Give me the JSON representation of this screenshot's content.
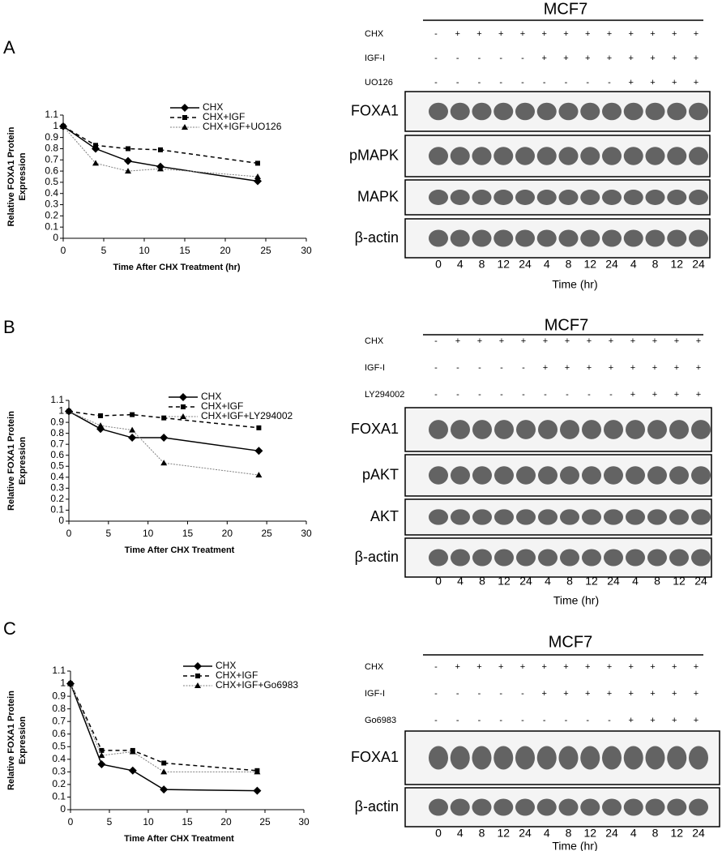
{
  "chart_data": [
    {
      "type": "line",
      "panel": "A",
      "ylabel": [
        "Relative FOXA1 Protein",
        "Expression"
      ],
      "xlabel": "Time After CHX Treatment (hr)",
      "x": [
        0,
        4,
        8,
        12,
        24
      ],
      "series": [
        {
          "name": "CHX",
          "color": "#000000",
          "values": [
            1,
            0.8,
            0.69,
            0.64,
            0.51
          ]
        },
        {
          "name": "CHX+IGF",
          "color": "#000000",
          "values": [
            1,
            0.83,
            0.8,
            0.79,
            0.67
          ]
        },
        {
          "name": "CHX+IGF+UO126",
          "color": "#808080",
          "values": [
            1,
            0.67,
            0.6,
            0.62,
            0.55
          ]
        }
      ],
      "xlim": [
        0,
        30
      ],
      "xticks": [
        0,
        5,
        10,
        15,
        20,
        25,
        30
      ],
      "ylim": [
        0,
        1.1
      ],
      "yticks": [
        0,
        0.1,
        0.2,
        0.3,
        0.4,
        0.5,
        0.6,
        0.7,
        0.8,
        0.9,
        1,
        1.1
      ]
    },
    {
      "type": "line",
      "panel": "B",
      "ylabel": [
        "Relative FOXA1 Protein",
        "Expression"
      ],
      "xlabel": "Time After CHX Treatment",
      "x": [
        0,
        4,
        8,
        12,
        24
      ],
      "series": [
        {
          "name": "CHX",
          "color": "#000000",
          "values": [
            1,
            0.84,
            0.76,
            0.76,
            0.64
          ]
        },
        {
          "name": "CHX+IGF",
          "color": "#000000",
          "values": [
            1,
            0.96,
            0.97,
            0.94,
            0.85
          ]
        },
        {
          "name": "CHX+IGF+LY294002",
          "color": "#808080",
          "values": [
            1,
            0.87,
            0.83,
            0.53,
            0.42
          ]
        }
      ],
      "xlim": [
        0,
        30
      ],
      "xticks": [
        0,
        5,
        10,
        15,
        20,
        25,
        30
      ],
      "ylim": [
        0,
        1.1
      ],
      "yticks": [
        0,
        0.1,
        0.2,
        0.3,
        0.4,
        0.5,
        0.6,
        0.7,
        0.8,
        0.9,
        1,
        1.1
      ]
    },
    {
      "type": "line",
      "panel": "C",
      "ylabel": [
        "Relative FOXA1 Protein",
        "Expression"
      ],
      "xlabel": "Time After CHX Treatment",
      "x": [
        0,
        4,
        8,
        12,
        24
      ],
      "series": [
        {
          "name": "CHX",
          "color": "#000000",
          "values": [
            1,
            0.36,
            0.31,
            0.16,
            0.15
          ]
        },
        {
          "name": "CHX+IGF",
          "color": "#000000",
          "values": [
            1,
            0.47,
            0.47,
            0.37,
            0.31
          ]
        },
        {
          "name": "CHX+IGF+Go6983",
          "color": "#808080",
          "values": [
            1,
            0.43,
            0.46,
            0.3,
            0.3
          ]
        }
      ],
      "xlim": [
        0,
        30
      ],
      "xticks": [
        0,
        5,
        10,
        15,
        20,
        25,
        30
      ],
      "ylim": [
        0,
        1.1
      ],
      "yticks": [
        0,
        0.1,
        0.2,
        0.3,
        0.4,
        0.5,
        0.6,
        0.7,
        0.8,
        0.9,
        1,
        1.1
      ]
    }
  ],
  "blots": [
    {
      "title": "MCF7",
      "treatments": [
        {
          "name": "CHX",
          "signs": [
            "-",
            "+",
            "+",
            "+",
            "+",
            "+",
            "+",
            "+",
            "+",
            "+",
            "+",
            "+",
            "+"
          ]
        },
        {
          "name": "IGF-I",
          "signs": [
            "-",
            "-",
            "-",
            "-",
            "-",
            "+",
            "+",
            "+",
            "+",
            "+",
            "+",
            "+",
            "+"
          ]
        },
        {
          "name": "UO126",
          "signs": [
            "-",
            "-",
            "-",
            "-",
            "-",
            "-",
            "-",
            "-",
            "-",
            "+",
            "+",
            "+",
            "+"
          ]
        }
      ],
      "bands": [
        "FOXA1",
        "pMAPK",
        "MAPK",
        "β-actin"
      ],
      "lanes": [
        "0",
        "4",
        "8",
        "12",
        "24",
        "4",
        "8",
        "12",
        "24",
        "4",
        "8",
        "12",
        "24"
      ],
      "xlabel": "Time (hr)"
    },
    {
      "title": "MCF7",
      "treatments": [
        {
          "name": "CHX",
          "signs": [
            "-",
            "+",
            "+",
            "+",
            "+",
            "+",
            "+",
            "+",
            "+",
            "+",
            "+",
            "+",
            "+"
          ]
        },
        {
          "name": "IGF-I",
          "signs": [
            "-",
            "-",
            "-",
            "-",
            "-",
            "+",
            "+",
            "+",
            "+",
            "+",
            "+",
            "+",
            "+"
          ]
        },
        {
          "name": "LY294002",
          "signs": [
            "-",
            "-",
            "-",
            "-",
            "-",
            "-",
            "-",
            "-",
            "-",
            "+",
            "+",
            "+",
            "+"
          ]
        }
      ],
      "bands": [
        "FOXA1",
        "pAKT",
        "AKT",
        "β-actin"
      ],
      "lanes": [
        "0",
        "4",
        "8",
        "12",
        "24",
        "4",
        "8",
        "12",
        "24",
        "4",
        "8",
        "12",
        "24"
      ],
      "xlabel": "Time (hr)"
    },
    {
      "title": "MCF7",
      "treatments": [
        {
          "name": "CHX",
          "signs": [
            "-",
            "+",
            "+",
            "+",
            "+",
            "+",
            "+",
            "+",
            "+",
            "+",
            "+",
            "+",
            "+"
          ]
        },
        {
          "name": "IGF-I",
          "signs": [
            "-",
            "-",
            "-",
            "-",
            "-",
            "+",
            "+",
            "+",
            "+",
            "+",
            "+",
            "+",
            "+"
          ]
        },
        {
          "name": "Go6983",
          "signs": [
            "-",
            "-",
            "-",
            "-",
            "-",
            "-",
            "-",
            "-",
            "-",
            "+",
            "+",
            "+",
            "+"
          ]
        }
      ],
      "bands": [
        "FOXA1",
        "β-actin"
      ],
      "lanes": [
        "0",
        "4",
        "8",
        "12",
        "24",
        "4",
        "8",
        "12",
        "24",
        "4",
        "8",
        "12",
        "24"
      ],
      "xlabel": "Time (hr)"
    }
  ]
}
